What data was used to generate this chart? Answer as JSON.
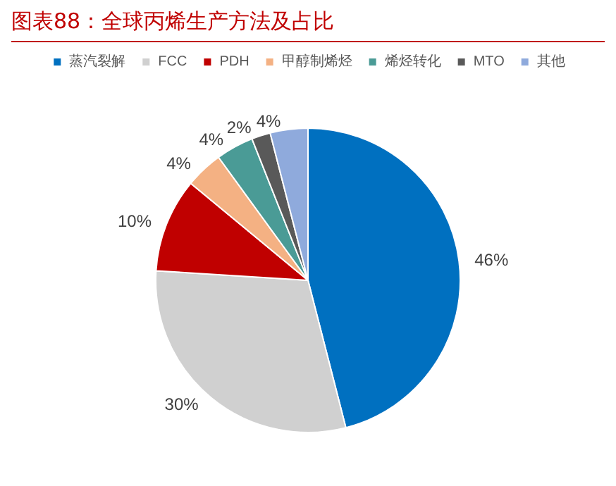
{
  "chart_data": {
    "type": "pie",
    "title": "图表88：全球丙烯生产方法及占比",
    "categories": [
      "蒸汽裂解",
      "FCC",
      "PDH",
      "甲醇制烯烃",
      "烯烃转化",
      "MTO",
      "其他"
    ],
    "values": [
      46,
      30,
      10,
      4,
      4,
      2,
      4
    ],
    "colors": [
      "#0070c0",
      "#d0d0d0",
      "#c00000",
      "#f4b183",
      "#4a9b96",
      "#595959",
      "#8faadc"
    ],
    "value_labels": [
      "46%",
      "30%",
      "10%",
      "4%",
      "4%",
      "2%",
      "4%"
    ],
    "legend": "top"
  }
}
